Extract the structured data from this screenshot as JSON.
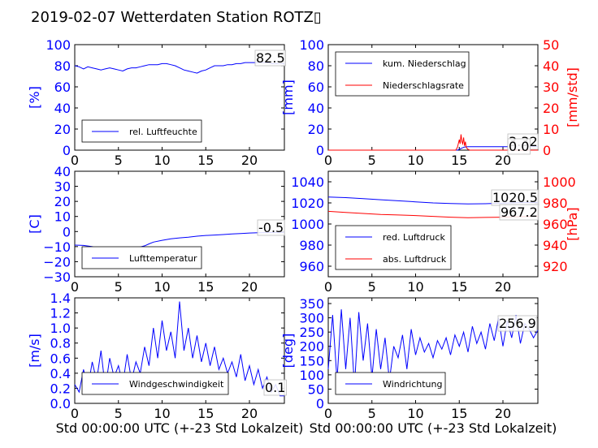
{
  "figure": {
    "title": "2019-02-07 Wetterdaten Station ROTZ▯"
  },
  "colors": {
    "primary": "#0000ff",
    "secondary": "#ff0000",
    "text": "#000000"
  },
  "chart_data": [
    {
      "id": "humidity",
      "type": "line",
      "ylabel": "[%]",
      "ylim": [
        0,
        100
      ],
      "yticks": [
        "0",
        "20",
        "40",
        "60",
        "80",
        "100"
      ],
      "xlim": [
        0,
        24
      ],
      "xticks": [
        "0",
        "5",
        "10",
        "15",
        "20"
      ],
      "annotation": "82.5",
      "legend": {
        "placement": "lower-left",
        "entries": [
          "rel. Luftfeuchte"
        ]
      },
      "series": [
        {
          "name": "rel. Luftfeuchte",
          "color": "#0000ff",
          "x": [
            0,
            0.5,
            1,
            1.5,
            2,
            2.5,
            3,
            3.5,
            4,
            4.5,
            5,
            5.5,
            6,
            6.5,
            7,
            7.5,
            8,
            8.5,
            9,
            9.5,
            10,
            10.5,
            11,
            11.5,
            12,
            12.5,
            13,
            13.5,
            14,
            14.5,
            15,
            15.5,
            16,
            16.5,
            17,
            17.5,
            18,
            18.5,
            19,
            19.5,
            20,
            20.5,
            21,
            21.5,
            22,
            22.5,
            23,
            23.5,
            24
          ],
          "y": [
            80,
            79,
            77,
            79,
            78,
            77,
            76,
            77,
            78,
            77,
            76,
            75,
            77,
            78,
            78,
            79,
            80,
            81,
            81,
            81,
            82,
            82,
            81,
            80,
            78,
            76,
            75,
            74,
            73,
            75,
            76,
            78,
            80,
            80,
            80,
            81,
            81,
            82,
            82,
            83,
            83,
            83,
            83,
            83,
            83,
            82,
            82,
            82,
            82
          ]
        }
      ]
    },
    {
      "id": "precip",
      "type": "line",
      "ylabel": "[mm]",
      "ylim": [
        0,
        100
      ],
      "yticks": [
        "0",
        "20",
        "40",
        "60",
        "80",
        "100"
      ],
      "ylabel2": "[mm/std]",
      "ylim2": [
        0,
        50
      ],
      "yticks2": [
        "0",
        "10",
        "20",
        "30",
        "40",
        "50"
      ],
      "xlim": [
        0,
        24
      ],
      "xticks": [
        "0",
        "5",
        "10",
        "15",
        "20"
      ],
      "annotations": [
        "3.32",
        "0.0"
      ],
      "legend": {
        "placement": "upper-left",
        "entries": [
          "kum. Niederschlag",
          "Niederschlagsrate"
        ]
      },
      "series": [
        {
          "name": "kum. Niederschlag",
          "color": "#0000ff",
          "axis": "left",
          "x": [
            0,
            14.8,
            15.0,
            15.3,
            15.6,
            16.0,
            24
          ],
          "y": [
            0,
            0,
            0.8,
            2.0,
            3.0,
            3.32,
            3.32
          ]
        },
        {
          "name": "Niederschlagsrate",
          "color": "#ff0000",
          "axis": "right",
          "x": [
            0,
            14.6,
            14.8,
            15.0,
            15.1,
            15.2,
            15.3,
            15.4,
            15.5,
            15.6,
            15.7,
            15.8,
            16.0,
            16.2,
            24
          ],
          "y": [
            0,
            0,
            1.5,
            5,
            3,
            7.5,
            4,
            3,
            6,
            2,
            4,
            1.2,
            0.4,
            0,
            0
          ]
        }
      ]
    },
    {
      "id": "temperature",
      "type": "line",
      "ylabel": "[C]",
      "ylim": [
        -30,
        40
      ],
      "yticks": [
        "−30",
        "−20",
        "−10",
        "0",
        "10",
        "20",
        "30",
        "40"
      ],
      "xlim": [
        0,
        24
      ],
      "xticks": [
        "0",
        "5",
        "10",
        "15",
        "20"
      ],
      "annotation": "-0.5",
      "legend": {
        "placement": "lower-left",
        "entries": [
          "Lufttemperatur"
        ]
      },
      "series": [
        {
          "name": "Lufttemperatur",
          "color": "#0000ff",
          "x": [
            0,
            1,
            2,
            2.5,
            3,
            3.5,
            4,
            5,
            6,
            7,
            8,
            8.5,
            9,
            10,
            11,
            12,
            13,
            14,
            15,
            16,
            17,
            18,
            19,
            20,
            21,
            22,
            23,
            24
          ],
          "y": [
            -9,
            -9.2,
            -10,
            -11,
            -12.5,
            -12,
            -11.2,
            -10.5,
            -10.8,
            -11,
            -9.5,
            -8.2,
            -7,
            -5.8,
            -4.8,
            -4.2,
            -3.7,
            -3.1,
            -2.6,
            -2.3,
            -2,
            -1.6,
            -1.3,
            -1,
            -0.8,
            -0.7,
            -0.5,
            -0.5
          ]
        }
      ]
    },
    {
      "id": "pressure",
      "type": "line",
      "ylim": [
        950,
        1050
      ],
      "yticks": [
        "960",
        "980",
        "1000",
        "1020",
        "1040"
      ],
      "ylabel2": "[hPa]",
      "ylim2": [
        910,
        1010
      ],
      "yticks2": [
        "920",
        "940",
        "960",
        "980",
        "1000"
      ],
      "xlim": [
        0,
        24
      ],
      "xticks": [
        "0",
        "5",
        "10",
        "15",
        "20"
      ],
      "annotations": [
        "1020.5",
        "967.2"
      ],
      "legend": {
        "placement": "lower-left",
        "entries": [
          "red. Luftdruck",
          "abs. Luftdruck"
        ]
      },
      "series": [
        {
          "name": "red. Luftdruck",
          "color": "#0000ff",
          "axis": "left",
          "x": [
            0,
            2,
            4,
            6,
            8,
            10,
            12,
            14,
            16,
            18,
            20,
            22,
            24
          ],
          "y": [
            1025.5,
            1025,
            1024,
            1023,
            1022,
            1021,
            1020,
            1019.5,
            1019,
            1019.2,
            1019.8,
            1020.3,
            1020.5
          ]
        },
        {
          "name": "abs. Luftdruck",
          "color": "#ff0000",
          "axis": "right",
          "x": [
            0,
            2,
            4,
            6,
            8,
            10,
            12,
            14,
            16,
            18,
            20,
            22,
            24
          ],
          "y": [
            972,
            971,
            970,
            969,
            968.5,
            968,
            967.2,
            966.5,
            966,
            966.2,
            966.5,
            967,
            967.2
          ]
        }
      ]
    },
    {
      "id": "windspeed",
      "type": "line",
      "ylabel": "[m/s]",
      "ylim": [
        0,
        1.4
      ],
      "yticks": [
        "0.0",
        "0.2",
        "0.4",
        "0.6",
        "0.8",
        "1.0",
        "1.2",
        "1.4"
      ],
      "xlim": [
        0,
        24
      ],
      "xticks": [
        "0",
        "5",
        "10",
        "15",
        "20"
      ],
      "xlabel": "Std 00:00:00 UTC (+-23 Std Lokalzeit)",
      "annotation": "0.1",
      "legend": {
        "placement": "lower-left",
        "entries": [
          "Windgeschwindigkeit"
        ]
      },
      "series": [
        {
          "name": "Windgeschwindigkeit",
          "color": "#0000ff",
          "x": [
            0,
            0.5,
            1,
            1.5,
            2,
            2.5,
            3,
            3.5,
            4,
            4.5,
            5,
            5.5,
            6,
            6.5,
            7,
            7.5,
            8,
            8.5,
            9,
            9.5,
            10,
            10.5,
            11,
            11.5,
            12,
            12.5,
            13,
            13.5,
            14,
            14.5,
            15,
            15.5,
            16,
            16.5,
            17,
            17.5,
            18,
            18.5,
            19,
            19.5,
            20,
            20.5,
            21,
            21.5,
            22,
            22.5,
            23,
            23.5,
            24
          ],
          "y": [
            0.25,
            0.15,
            0.45,
            0.2,
            0.55,
            0.3,
            0.7,
            0.2,
            0.6,
            0.35,
            0.5,
            0.25,
            0.65,
            0.3,
            0.55,
            0.4,
            0.75,
            0.5,
            1.0,
            0.6,
            1.1,
            0.7,
            0.95,
            0.6,
            1.35,
            0.7,
            1.0,
            0.6,
            0.9,
            0.55,
            0.8,
            0.5,
            0.75,
            0.45,
            0.6,
            0.4,
            0.55,
            0.35,
            0.65,
            0.3,
            0.5,
            0.25,
            0.45,
            0.2,
            0.35,
            0.15,
            0.25,
            0.1,
            0.1
          ]
        }
      ]
    },
    {
      "id": "winddir",
      "type": "line",
      "ylabel": "[deg]",
      "ylim": [
        0,
        370
      ],
      "yticks": [
        "0",
        "50",
        "100",
        "150",
        "200",
        "250",
        "300",
        "350"
      ],
      "xlim": [
        0,
        24
      ],
      "xticks": [
        "0",
        "5",
        "10",
        "15",
        "20"
      ],
      "xlabel": "Std 00:00:00 UTC (+-23 Std Lokalzeit)",
      "annotation": "256.9",
      "legend": {
        "placement": "lower-left",
        "entries": [
          "Windrichtung"
        ]
      },
      "series": [
        {
          "name": "Windrichtung",
          "color": "#0000ff",
          "x": [
            0,
            0.5,
            1,
            1.5,
            2,
            2.5,
            3,
            3.5,
            4,
            4.5,
            5,
            5.5,
            6,
            6.5,
            7,
            7.5,
            8,
            8.5,
            9,
            9.5,
            10,
            10.5,
            11,
            11.5,
            12,
            12.5,
            13,
            13.5,
            14,
            14.5,
            15,
            15.5,
            16,
            16.5,
            17,
            17.5,
            18,
            18.5,
            19,
            19.5,
            20,
            20.5,
            21,
            21.5,
            22,
            22.5,
            23,
            23.5,
            24
          ],
          "y": [
            120,
            310,
            80,
            330,
            120,
            300,
            60,
            320,
            150,
            280,
            90,
            260,
            120,
            230,
            80,
            200,
            160,
            240,
            120,
            260,
            170,
            230,
            180,
            210,
            160,
            220,
            190,
            230,
            170,
            240,
            200,
            250,
            180,
            270,
            210,
            250,
            190,
            280,
            220,
            300,
            200,
            290,
            230,
            310,
            210,
            280,
            260,
            230,
            257
          ]
        }
      ]
    }
  ]
}
